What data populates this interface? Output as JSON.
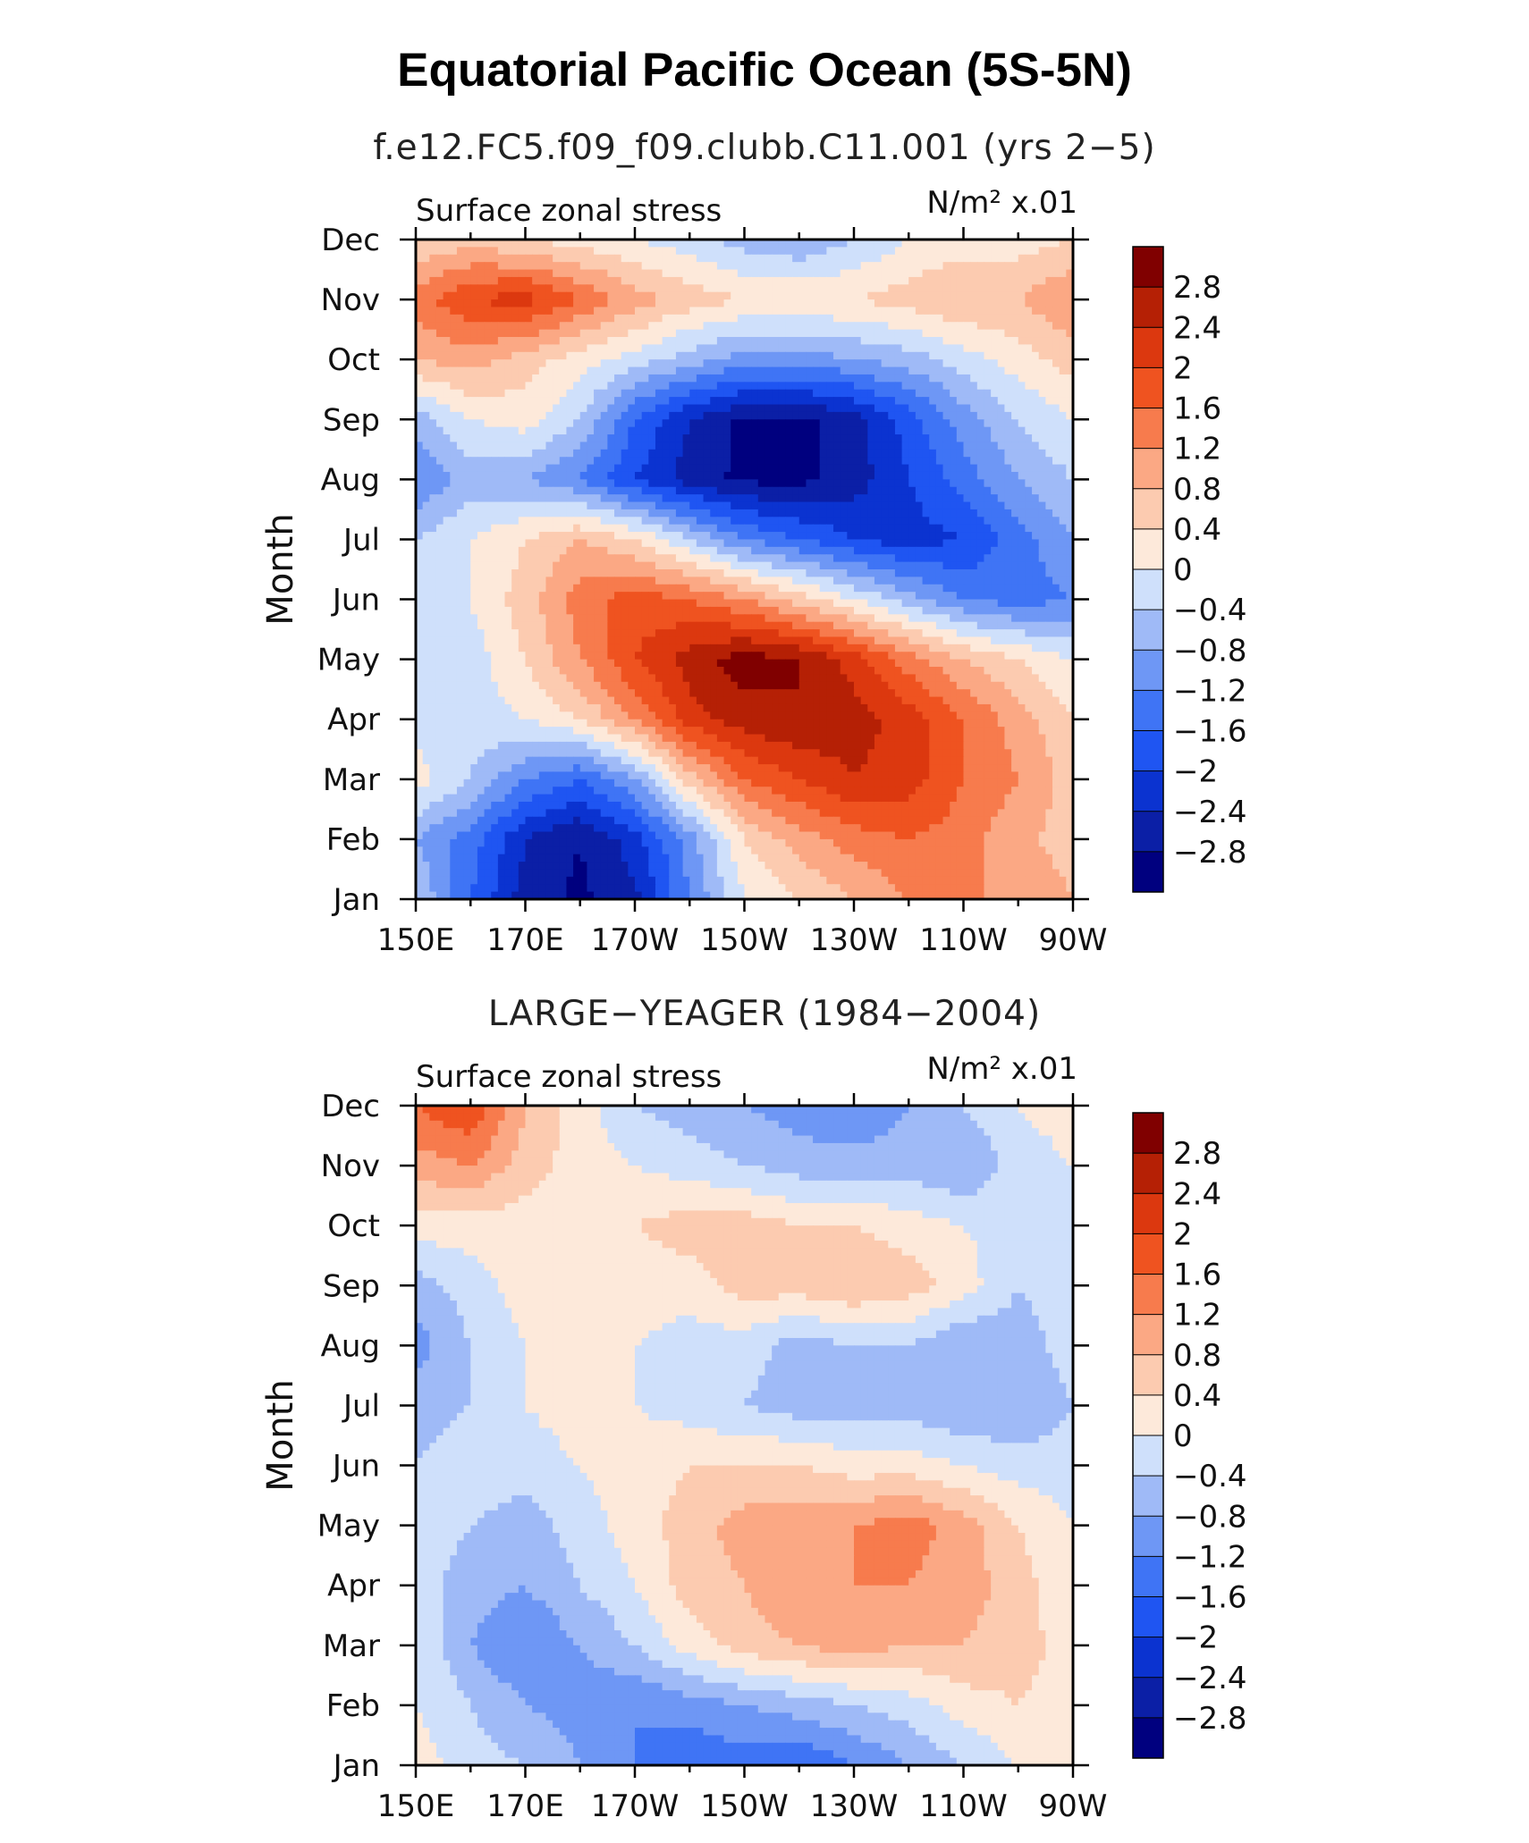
{
  "title": "Equatorial Pacific Ocean (5S-5N)",
  "chart_data": [
    {
      "type": "heatmap",
      "subtitle": "f.e12.FC5.f09_f09.clubb.C11.001 (yrs 2−5)",
      "left_label": "Surface zonal stress",
      "units_label": "N/m² x.01",
      "ylabel": "Month",
      "x_ticks": [
        "150E",
        "170E",
        "170W",
        "150W",
        "130W",
        "110W",
        "90W"
      ],
      "y_ticks": [
        "Jan",
        "Feb",
        "Mar",
        "Apr",
        "May",
        "Jun",
        "Jul",
        "Aug",
        "Sep",
        "Oct",
        "Nov",
        "Dec"
      ],
      "x_lon": [
        150,
        170,
        190,
        210,
        230,
        250,
        270
      ],
      "grid_lon": [
        150,
        160,
        170,
        180,
        190,
        200,
        210,
        220,
        230,
        240,
        250,
        260,
        270
      ],
      "z": [
        [
          -0.4,
          -1.6,
          -2.6,
          -2.9,
          -2.5,
          -1.2,
          0.0,
          0.4,
          0.8,
          1.2,
          1.2,
          1.2,
          0.8
        ],
        [
          -0.8,
          -1.4,
          -2.4,
          -2.8,
          -2.2,
          -1.0,
          0.4,
          1.0,
          1.4,
          1.6,
          1.4,
          0.9,
          0.6
        ],
        [
          0.2,
          -0.4,
          -1.2,
          -1.6,
          -0.8,
          0.6,
          1.6,
          2.0,
          2.4,
          2.2,
          1.6,
          1.2,
          0.6
        ],
        [
          -0.2,
          -0.2,
          0.0,
          0.4,
          1.2,
          2.2,
          2.6,
          2.8,
          2.6,
          2.2,
          1.6,
          1.0,
          0.4
        ],
        [
          0.0,
          -0.2,
          0.4,
          1.2,
          2.0,
          2.6,
          3.0,
          2.8,
          2.2,
          1.4,
          0.8,
          0.4,
          0.0
        ],
        [
          -0.2,
          0.0,
          0.6,
          1.4,
          1.8,
          1.6,
          1.2,
          0.6,
          0.0,
          -0.6,
          -1.2,
          -1.4,
          -1.2
        ],
        [
          -0.4,
          0.0,
          0.4,
          0.8,
          0.4,
          -0.4,
          -1.2,
          -1.6,
          -2.0,
          -2.2,
          -2.0,
          -1.4,
          -0.8
        ],
        [
          -1.2,
          -0.6,
          -0.8,
          -1.2,
          -2.0,
          -2.6,
          -2.9,
          -2.9,
          -2.6,
          -2.0,
          -1.4,
          -0.8,
          -0.4
        ],
        [
          -0.6,
          0.0,
          0.2,
          -0.4,
          -1.6,
          -2.4,
          -2.9,
          -2.9,
          -2.6,
          -1.8,
          -1.0,
          -0.4,
          0.0
        ],
        [
          0.8,
          1.0,
          0.6,
          0.2,
          -0.2,
          -0.6,
          -1.0,
          -1.0,
          -0.8,
          -0.6,
          -0.2,
          0.2,
          0.6
        ],
        [
          1.4,
          2.0,
          2.2,
          1.6,
          1.0,
          0.6,
          0.4,
          0.4,
          0.4,
          0.6,
          0.8,
          0.8,
          1.2
        ],
        [
          0.4,
          0.6,
          0.4,
          0.2,
          0.0,
          -0.2,
          -0.6,
          -0.8,
          -0.4,
          0.0,
          0.2,
          0.2,
          0.4
        ]
      ]
    },
    {
      "type": "heatmap",
      "subtitle": "LARGE−YEAGER (1984−2004)",
      "left_label": "Surface zonal stress",
      "units_label": "N/m² x.01",
      "ylabel": "Month",
      "x_ticks": [
        "150E",
        "170E",
        "170W",
        "150W",
        "130W",
        "110W",
        "90W"
      ],
      "y_ticks": [
        "Jan",
        "Feb",
        "Mar",
        "Apr",
        "May",
        "Jun",
        "Jul",
        "Aug",
        "Sep",
        "Oct",
        "Nov",
        "Dec"
      ],
      "x_lon": [
        150,
        170,
        190,
        210,
        230,
        250,
        270
      ],
      "grid_lon": [
        150,
        160,
        170,
        180,
        190,
        200,
        210,
        220,
        230,
        240,
        250,
        260,
        270
      ],
      "z": [
        [
          0.2,
          -0.2,
          -0.4,
          -0.8,
          -1.2,
          -1.6,
          -1.4,
          -1.6,
          -1.2,
          -0.8,
          -0.4,
          0.0,
          0.2
        ],
        [
          0.0,
          -0.4,
          -0.8,
          -1.0,
          -1.2,
          -1.0,
          -0.8,
          -0.6,
          -0.4,
          -0.2,
          0.2,
          0.4,
          0.2
        ],
        [
          0.0,
          -0.8,
          -1.2,
          -0.8,
          -0.4,
          0.2,
          0.6,
          0.8,
          1.0,
          0.8,
          0.8,
          0.6,
          0.2
        ],
        [
          -0.2,
          -0.6,
          -0.8,
          -0.4,
          0.0,
          0.6,
          0.8,
          1.2,
          1.2,
          1.2,
          1.0,
          0.6,
          0.0
        ],
        [
          -0.2,
          -0.4,
          -0.6,
          -0.2,
          0.2,
          0.6,
          1.0,
          1.0,
          1.2,
          1.4,
          1.0,
          0.4,
          0.0
        ],
        [
          -0.4,
          -0.2,
          -0.2,
          0.0,
          0.2,
          0.4,
          0.4,
          0.4,
          0.2,
          0.2,
          0.0,
          -0.2,
          -0.2
        ],
        [
          -0.6,
          -0.4,
          0.0,
          0.2,
          0.0,
          -0.2,
          -0.4,
          -0.6,
          -0.6,
          -0.6,
          -0.8,
          -0.8,
          -0.4
        ],
        [
          -1.0,
          -0.4,
          0.0,
          0.2,
          0.0,
          -0.2,
          -0.2,
          -0.6,
          -0.4,
          -0.4,
          -0.8,
          -0.6,
          -0.2
        ],
        [
          -0.6,
          -0.2,
          0.2,
          0.2,
          0.2,
          0.2,
          0.6,
          0.6,
          0.8,
          0.6,
          0.2,
          -0.4,
          -0.2
        ],
        [
          0.2,
          0.2,
          0.2,
          0.2,
          0.4,
          0.6,
          0.6,
          0.4,
          0.4,
          0.2,
          0.0,
          -0.2,
          0.0
        ],
        [
          1.0,
          1.2,
          0.6,
          0.2,
          0.0,
          -0.2,
          -0.4,
          -0.6,
          -0.6,
          -0.6,
          -0.8,
          -0.2,
          0.0
        ],
        [
          1.6,
          2.0,
          0.8,
          0.2,
          -0.4,
          -0.6,
          -0.8,
          -1.0,
          -1.2,
          -0.8,
          -0.4,
          0.0,
          0.2
        ]
      ]
    }
  ],
  "colorbar": {
    "levels": [
      "2.8",
      "2.4",
      "2",
      "1.6",
      "1.2",
      "0.8",
      "0.4",
      "0",
      "−0.4",
      "−0.8",
      "−1.2",
      "−1.6",
      "−2",
      "−2.4",
      "−2.8"
    ],
    "boundaries": [
      -2.8,
      -2.4,
      -2.0,
      -1.6,
      -1.2,
      -0.8,
      -0.4,
      0.0,
      0.4,
      0.8,
      1.2,
      1.6,
      2.0,
      2.4,
      2.8
    ],
    "colors": [
      "#00007f",
      "#0b1fa6",
      "#0b33d0",
      "#1f55f2",
      "#3f74f5",
      "#6e97f5",
      "#9fbaf7",
      "#cfe0fb",
      "#fde9da",
      "#fccbb0",
      "#fba884",
      "#f77b4d",
      "#ef5320",
      "#dc380f",
      "#b52005",
      "#800000"
    ]
  }
}
